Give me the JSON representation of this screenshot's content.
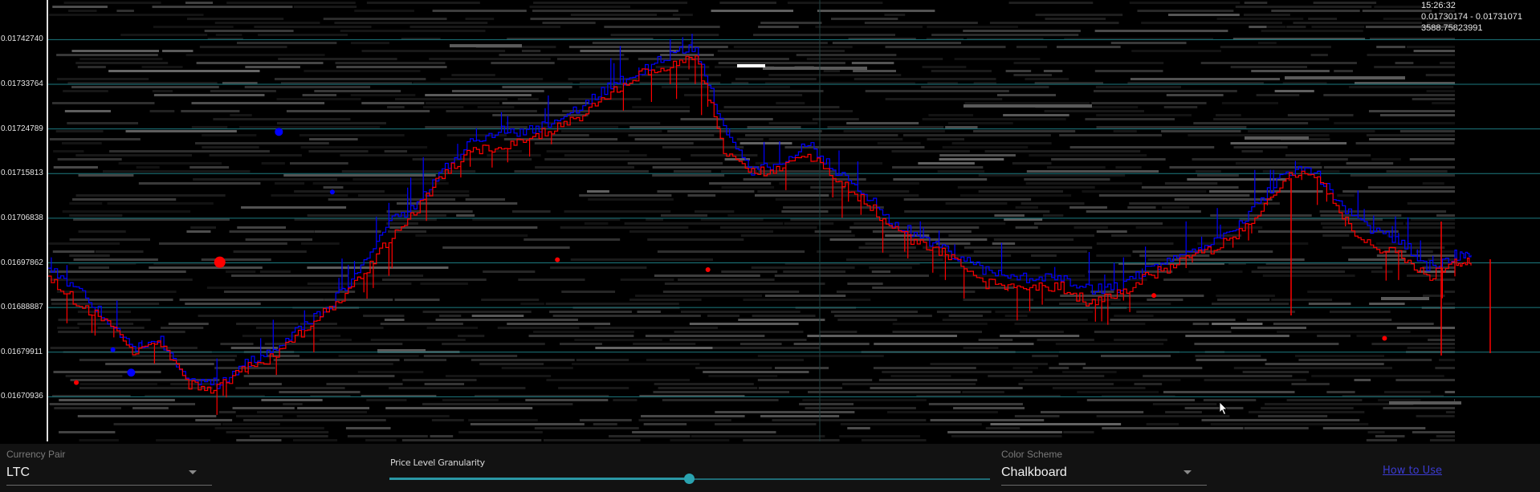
{
  "info": {
    "time": "15:26:32",
    "range": "0.01730174 - 0.01731071",
    "volume": "3588.75823991"
  },
  "controls": {
    "currency_pair": {
      "label": "Currency Pair",
      "value": "LTC"
    },
    "granularity": {
      "label": "Price Level Granularity",
      "value": 0.5
    },
    "color_scheme": {
      "label": "Color Scheme",
      "value": "Chalkboard"
    },
    "how_to_use": "How to Use"
  },
  "colors": {
    "background": "#000000",
    "grid": "#1d7a80",
    "bid_line": "#0000ff",
    "ask_line": "#ff0000",
    "controls_bg": "#121212",
    "accent": "#2aa3b0"
  },
  "chart_data": {
    "type": "line",
    "title": "",
    "xlabel": "",
    "ylabel": "",
    "ylim": [
      0.0166196,
      0.01750716
    ],
    "y_ticks": [
      "0.01742740",
      "0.01733764",
      "0.01724789",
      "0.01715813",
      "0.01706838",
      "0.01697862",
      "0.01688887",
      "0.01679911",
      "0.01670936"
    ],
    "y_tick_values": [
      0.0174274,
      0.01733764,
      0.01724789,
      0.01715813,
      0.01706838,
      0.01697862,
      0.01688887,
      0.01679911,
      0.01670936
    ],
    "x": [
      0,
      2,
      4,
      6,
      8,
      10,
      12,
      14,
      16,
      18,
      20,
      22,
      24,
      26,
      28,
      30,
      32,
      34,
      36,
      38,
      40,
      42,
      44,
      46,
      48,
      50,
      52,
      54,
      56,
      58,
      60,
      62,
      64,
      66,
      68,
      70,
      72,
      74,
      76,
      78,
      80,
      82,
      84,
      86,
      88,
      90,
      92,
      94,
      96,
      98,
      100
    ],
    "series": [
      {
        "values": [
          0.016968,
          0.016925,
          0.01687,
          0.016808,
          0.016822,
          0.016746,
          0.016736,
          0.016776,
          0.016802,
          0.01685,
          0.016895,
          0.016955,
          0.017054,
          0.017092,
          0.017162,
          0.017218,
          0.017243,
          0.017243,
          0.017263,
          0.017297,
          0.017334,
          0.017363,
          0.017395,
          0.017412,
          0.017245,
          0.017163,
          0.017181,
          0.017218,
          0.017162,
          0.017121,
          0.017056,
          0.017033,
          0.016999,
          0.01697,
          0.016948,
          0.01695,
          0.016952,
          0.016924,
          0.016929,
          0.016965,
          0.01699,
          0.017007,
          0.017035,
          0.017101,
          0.017161,
          0.017163,
          0.017093,
          0.017042,
          0.017026,
          0.01697,
          0.016994
        ]
      },
      {
        "values": [
          0.016952,
          0.0169,
          0.016861,
          0.016801,
          0.016815,
          0.016734,
          0.016724,
          0.016767,
          0.01679,
          0.01684,
          0.016888,
          0.01694,
          0.01702,
          0.01708,
          0.017155,
          0.017205,
          0.017205,
          0.017231,
          0.017248,
          0.017277,
          0.017322,
          0.017358,
          0.017376,
          0.017397,
          0.017206,
          0.017163,
          0.017165,
          0.017198,
          0.017146,
          0.017105,
          0.017046,
          0.017015,
          0.016994,
          0.016939,
          0.016932,
          0.016929,
          0.016931,
          0.016896,
          0.016914,
          0.016952,
          0.016972,
          0.016998,
          0.017025,
          0.017071,
          0.017155,
          0.017158,
          0.017067,
          0.01701,
          0.017,
          0.016948,
          0.01698
        ]
      }
    ],
    "markers": [
      {
        "x": 12.2,
        "y": 0.01698,
        "size": 7,
        "color": "#ff0000"
      },
      {
        "x": 16.4,
        "y": 0.017242,
        "size": 5,
        "color": "#0000ff"
      },
      {
        "x": 5.9,
        "y": 0.016758,
        "size": 5,
        "color": "#0000ff"
      },
      {
        "x": 4.6,
        "y": 0.016804,
        "size": 3,
        "color": "#0000ff"
      },
      {
        "x": 2.0,
        "y": 0.016738,
        "size": 3,
        "color": "#ff0000"
      },
      {
        "x": 20.2,
        "y": 0.017121,
        "size": 3,
        "color": "#0000ff"
      },
      {
        "x": 36.2,
        "y": 0.016985,
        "size": 3,
        "color": "#ff0000"
      },
      {
        "x": 46.9,
        "y": 0.016965,
        "size": 3,
        "color": "#ff0000"
      },
      {
        "x": 78.6,
        "y": 0.016913,
        "size": 3,
        "color": "#ff0000"
      },
      {
        "x": 95.0,
        "y": 0.016827,
        "size": 3,
        "color": "#ff0000"
      }
    ]
  }
}
